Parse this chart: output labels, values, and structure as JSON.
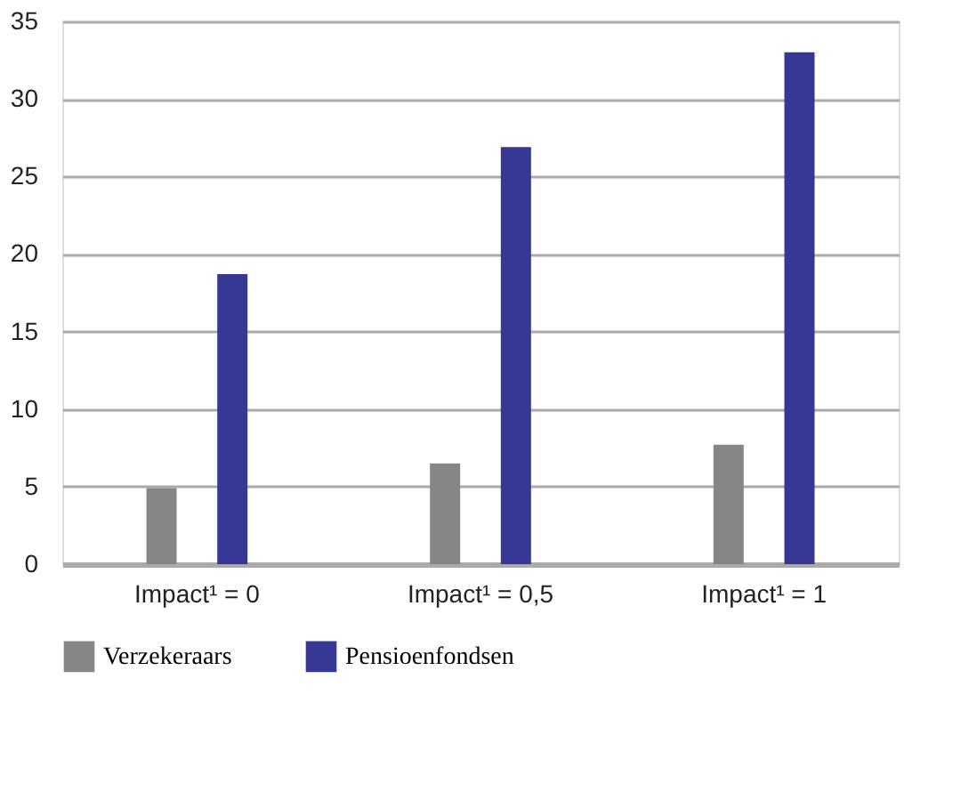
{
  "chart_data": {
    "type": "bar",
    "categories": [
      "Impact¹ = 0",
      "Impact¹ = 0,5",
      "Impact¹  = 1"
    ],
    "series": [
      {
        "name": "Verzekeraars",
        "color": "#858688",
        "values": [
          4.9,
          6.5,
          7.7
        ]
      },
      {
        "name": "Pensioenfondsen",
        "color": "#373893",
        "values": [
          18.7,
          26.9,
          33.0
        ]
      }
    ],
    "ylim": [
      0,
      35
    ],
    "yticks": [
      0,
      5,
      10,
      15,
      20,
      25,
      30,
      35
    ],
    "grid": "y",
    "legend": "bottom"
  }
}
